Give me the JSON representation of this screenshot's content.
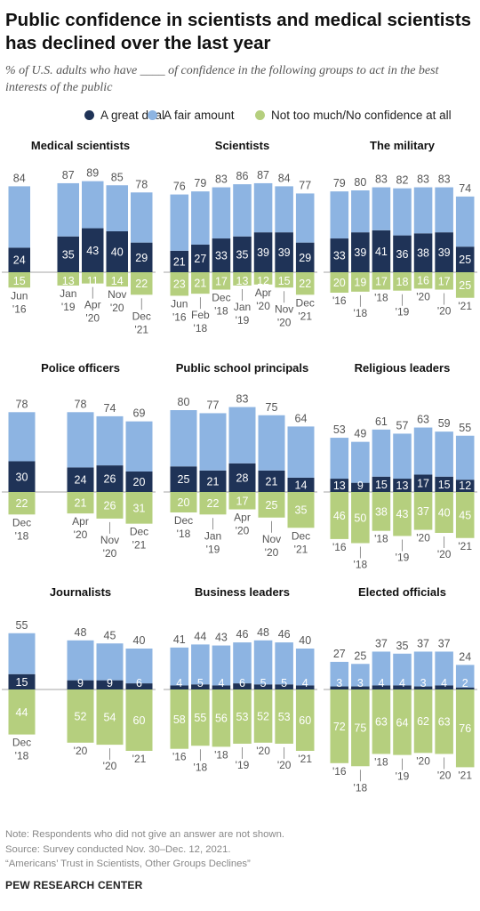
{
  "title": "Public confidence in scientists and medical scientists has declined over the last year",
  "subtitle": "% of U.S. adults who have ____ of confidence in the following groups to act in the best interests of the public",
  "legend": [
    {
      "label": "A great deal",
      "color": "#1f3357"
    },
    {
      "label": "A fair amount",
      "color": "#8db4e2"
    },
    {
      "label": "Not too much/No confidence at all",
      "color": "#b5cf7e"
    }
  ],
  "colors": {
    "great": "#1f3357",
    "fair": "#8db4e2",
    "not": "#b5cf7e",
    "baseline": "#888888"
  },
  "chart_data": [
    {
      "type": "bar",
      "title": "Medical scientists",
      "series": [
        {
          "name": "A great deal",
          "values": [
            24,
            null,
            35,
            43,
            40,
            29
          ]
        },
        {
          "name": "A fair amount",
          "values": [
            60,
            null,
            52,
            46,
            45,
            49
          ]
        },
        {
          "name": "Not too much/No confidence at all",
          "values": [
            15,
            null,
            13,
            11,
            14,
            22
          ]
        }
      ],
      "totals": [
        84,
        null,
        87,
        89,
        85,
        78
      ],
      "tick_labels": [
        [
          "Jun",
          "'16"
        ],
        [],
        [
          "Jan",
          "'19"
        ],
        [
          "Apr",
          "'20"
        ],
        [
          "Nov",
          "'20"
        ],
        [
          "Dec",
          "'21"
        ]
      ]
    },
    {
      "type": "bar",
      "title": "Scientists",
      "series": [
        {
          "name": "A great deal",
          "values": [
            21,
            27,
            33,
            35,
            39,
            39,
            29
          ]
        },
        {
          "name": "A fair amount",
          "values": [
            55,
            52,
            50,
            51,
            48,
            45,
            48
          ]
        },
        {
          "name": "Not too much/No confidence at all",
          "values": [
            23,
            21,
            17,
            13,
            12,
            15,
            22
          ]
        }
      ],
      "totals": [
        76,
        79,
        83,
        86,
        87,
        84,
        77
      ],
      "tick_labels": [
        [
          "Jun",
          "'16"
        ],
        [
          "Feb",
          "'18"
        ],
        [
          "Dec",
          "'18"
        ],
        [
          "Jan",
          "'19"
        ],
        [
          "Apr",
          "'20"
        ],
        [
          "Nov",
          "'20"
        ],
        [
          "Dec",
          "'21"
        ]
      ]
    },
    {
      "type": "bar",
      "title": "The military",
      "series": [
        {
          "name": "A great deal",
          "values": [
            33,
            39,
            41,
            36,
            38,
            39,
            25
          ]
        },
        {
          "name": "A fair amount",
          "values": [
            46,
            41,
            42,
            46,
            45,
            44,
            49
          ]
        },
        {
          "name": "Not too much/No confidence at all",
          "values": [
            20,
            19,
            17,
            18,
            16,
            17,
            25
          ]
        }
      ],
      "totals": [
        79,
        80,
        83,
        82,
        83,
        83,
        74
      ],
      "tick_labels": [
        [
          "'16"
        ],
        [
          "'18"
        ],
        [
          "'18"
        ],
        [
          "'19"
        ],
        [
          "'20"
        ],
        [
          "'20"
        ],
        [
          "'21"
        ]
      ]
    },
    {
      "type": "bar",
      "title": "Police officers",
      "series": [
        {
          "name": "A great deal",
          "values": [
            30,
            null,
            24,
            26,
            20
          ]
        },
        {
          "name": "A fair amount",
          "values": [
            48,
            null,
            54,
            48,
            49
          ]
        },
        {
          "name": "Not too much/No confidence at all",
          "values": [
            22,
            null,
            21,
            26,
            31
          ]
        }
      ],
      "totals": [
        78,
        null,
        78,
        74,
        69
      ],
      "tick_labels": [
        [
          "Dec",
          "'18"
        ],
        [],
        [
          "Apr",
          "'20"
        ],
        [
          "Nov",
          "'20"
        ],
        [
          "Dec",
          "'21"
        ]
      ]
    },
    {
      "type": "bar",
      "title": "Public school principals",
      "series": [
        {
          "name": "A great deal",
          "values": [
            25,
            21,
            28,
            21,
            14
          ]
        },
        {
          "name": "A fair amount",
          "values": [
            55,
            56,
            55,
            54,
            50
          ]
        },
        {
          "name": "Not too much/No confidence at all",
          "values": [
            20,
            22,
            17,
            25,
            35
          ]
        }
      ],
      "totals": [
        80,
        77,
        83,
        75,
        64
      ],
      "tick_labels": [
        [
          "Dec",
          "'18"
        ],
        [
          "Jan",
          "'19"
        ],
        [
          "Apr",
          "'20"
        ],
        [
          "Nov",
          "'20"
        ],
        [
          "Dec",
          "'21"
        ]
      ]
    },
    {
      "type": "bar",
      "title": "Religious leaders",
      "series": [
        {
          "name": "A great deal",
          "values": [
            13,
            9,
            15,
            13,
            17,
            15,
            12
          ]
        },
        {
          "name": "A fair amount",
          "values": [
            40,
            40,
            46,
            44,
            46,
            44,
            43
          ]
        },
        {
          "name": "Not too much/No confidence at all",
          "values": [
            46,
            50,
            38,
            43,
            37,
            40,
            45
          ]
        }
      ],
      "totals": [
        53,
        49,
        61,
        57,
        63,
        59,
        55
      ],
      "tick_labels": [
        [
          "'16"
        ],
        [
          "'18"
        ],
        [
          "'18"
        ],
        [
          "'19"
        ],
        [
          "'20"
        ],
        [
          "'20"
        ],
        [
          "'21"
        ]
      ]
    },
    {
      "type": "bar",
      "title": "Journalists",
      "series": [
        {
          "name": "A great deal",
          "values": [
            15,
            null,
            9,
            9,
            6
          ]
        },
        {
          "name": "A fair amount",
          "values": [
            40,
            null,
            39,
            36,
            34
          ]
        },
        {
          "name": "Not too much/No confidence at all",
          "values": [
            44,
            null,
            52,
            54,
            60
          ]
        }
      ],
      "totals": [
        55,
        null,
        48,
        45,
        40
      ],
      "tick_labels": [
        [
          "Dec",
          "'18"
        ],
        [],
        [
          "'20"
        ],
        [
          "'20"
        ],
        [
          "'21"
        ]
      ]
    },
    {
      "type": "bar",
      "title": "Business leaders",
      "series": [
        {
          "name": "A great deal",
          "values": [
            4,
            5,
            4,
            6,
            5,
            5,
            4
          ]
        },
        {
          "name": "A fair amount",
          "values": [
            37,
            39,
            39,
            40,
            43,
            41,
            36
          ]
        },
        {
          "name": "Not too much/No confidence at all",
          "values": [
            58,
            55,
            56,
            53,
            52,
            53,
            60
          ]
        }
      ],
      "totals": [
        41,
        44,
        43,
        46,
        48,
        46,
        40
      ],
      "tick_labels": [
        [
          "'16"
        ],
        [
          "'18"
        ],
        [
          "'18"
        ],
        [
          "'19"
        ],
        [
          "'20"
        ],
        [
          "'20"
        ],
        [
          "'21"
        ]
      ]
    },
    {
      "type": "bar",
      "title": "Elected officials",
      "series": [
        {
          "name": "A great deal",
          "values": [
            3,
            3,
            4,
            4,
            3,
            4,
            2
          ]
        },
        {
          "name": "A fair amount",
          "values": [
            24,
            22,
            33,
            31,
            34,
            33,
            22
          ]
        },
        {
          "name": "Not too much/No confidence at all",
          "values": [
            72,
            75,
            63,
            64,
            62,
            63,
            76
          ]
        }
      ],
      "totals": [
        27,
        25,
        37,
        35,
        37,
        37,
        24
      ],
      "tick_labels": [
        [
          "'16"
        ],
        [
          "'18"
        ],
        [
          "'18"
        ],
        [
          "'19"
        ],
        [
          "'20"
        ],
        [
          "'20"
        ],
        [
          "'21"
        ]
      ]
    }
  ],
  "notes": [
    "Note: Respondents who did not give an answer are not shown.",
    "Source: Survey conducted Nov. 30–Dec. 12, 2021.",
    "“Americans’ Trust in Scientists, Other Groups Declines”"
  ],
  "source_org": "PEW RESEARCH CENTER"
}
